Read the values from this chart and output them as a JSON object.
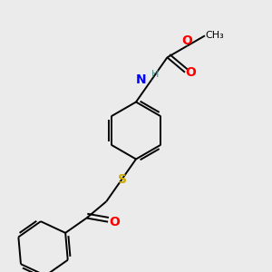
{
  "bg_color": "#ebebeb",
  "bond_color": "#000000",
  "atom_colors": {
    "N": "#0000ff",
    "O": "#ff0000",
    "S": "#ccaa00",
    "H": "#4a9090",
    "C": "#000000"
  },
  "bond_lw": 1.4,
  "font_size": 10,
  "figsize": [
    3.0,
    3.0
  ],
  "dpi": 100,
  "xlim": [
    0,
    10
  ],
  "ylim": [
    0,
    10
  ]
}
